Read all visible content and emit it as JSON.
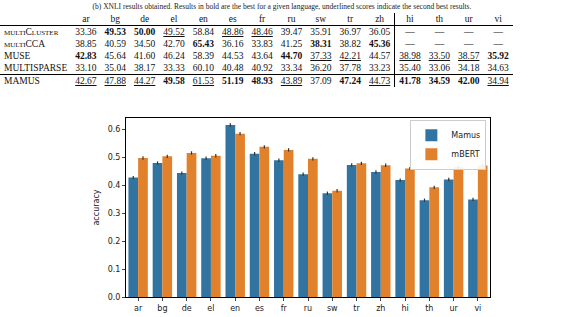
{
  "caption": "(b) XNLI results obtained. Results in bold are the best for a given language, underlined scores indicate the second best results.",
  "table": {
    "column_groups": [
      [
        "ar",
        "bg",
        "de",
        "el",
        "en",
        "es",
        "fr",
        "ru",
        "sw",
        "tr",
        "zh"
      ],
      [
        "hi",
        "th",
        "ur",
        "vi"
      ]
    ],
    "rows": [
      {
        "label": "multiCluster",
        "cells": [
          "33.36",
          "49.53",
          "50.00",
          "49.52",
          "58.84",
          "48.86",
          "48.46",
          "39.47",
          "35.91",
          "36.97",
          "36.05",
          "—",
          "—",
          "—",
          "—"
        ]
      },
      {
        "label": "multiCCA",
        "cells": [
          "38.85",
          "40.59",
          "34.50",
          "42.70",
          "65.43",
          "36.16",
          "33.83",
          "41.25",
          "38.31",
          "38.82",
          "45.36",
          "—",
          "—",
          "—",
          "—"
        ]
      },
      {
        "label": "MUSE",
        "cells": [
          "42.83",
          "45.64",
          "41.60",
          "46.24",
          "58.39",
          "44.53",
          "43.64",
          "44.70",
          "37.33",
          "42.21",
          "44.57",
          "38.98",
          "33.50",
          "38.57",
          "35.92"
        ]
      },
      {
        "label": "MULTISPARSE",
        "cells": [
          "33.10",
          "35.04",
          "38.17",
          "33.33",
          "60.10",
          "40.48",
          "40.92",
          "33.34",
          "36.20",
          "37.78",
          "33.23",
          "35.40",
          "33.06",
          "34.18",
          "34.63"
        ]
      },
      {
        "label": "MAMUS",
        "cells": [
          "42.67",
          "47.88",
          "44.27",
          "49.58",
          "61.53",
          "51.19",
          "48.93",
          "43.89",
          "37.09",
          "47.24",
          "44.73",
          "41.78",
          "34.59",
          "42.00",
          "34.94"
        ]
      }
    ]
  },
  "chart_data": {
    "type": "bar",
    "y_label": "accuracy",
    "categories": [
      "ar",
      "bg",
      "de",
      "el",
      "en",
      "es",
      "fr",
      "ru",
      "sw",
      "tr",
      "zh",
      "hi",
      "th",
      "ur",
      "vi"
    ],
    "series": [
      {
        "name": "Mamus",
        "color": "#3274a1",
        "values": [
          0.427,
          0.479,
          0.443,
          0.496,
          0.615,
          0.512,
          0.489,
          0.439,
          0.371,
          0.472,
          0.447,
          0.418,
          0.346,
          0.42,
          0.349
        ],
        "errors": [
          0.006,
          0.006,
          0.006,
          0.006,
          0.006,
          0.006,
          0.006,
          0.006,
          0.006,
          0.006,
          0.006,
          0.006,
          0.006,
          0.006,
          0.006
        ]
      },
      {
        "name": "mBERT",
        "color": "#e1812c",
        "values": [
          0.497,
          0.503,
          0.515,
          0.505,
          0.584,
          0.537,
          0.526,
          0.494,
          0.38,
          0.478,
          0.471,
          0.459,
          0.392,
          0.465,
          0.47
        ],
        "errors": [
          0.006,
          0.006,
          0.006,
          0.006,
          0.006,
          0.006,
          0.006,
          0.006,
          0.006,
          0.006,
          0.006,
          0.006,
          0.006,
          0.006,
          0.006
        ]
      }
    ],
    "ylim": [
      0,
      0.64
    ],
    "yticks": [
      {
        "value": 0,
        "label": "0.0"
      },
      0.1,
      0.2,
      0.3,
      0.4,
      0.5,
      0.6
    ],
    "grid": false,
    "legend": "top right"
  }
}
